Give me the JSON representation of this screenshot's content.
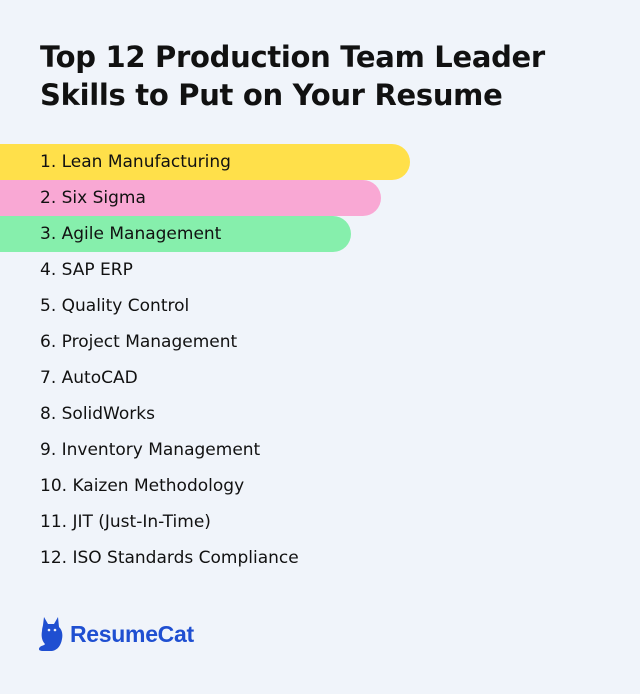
{
  "title_line1": "Top 12 Production Team Leader",
  "title_line2": "Skills to Put on Your Resume",
  "skills": [
    {
      "label": "1. Lean Manufacturing",
      "highlight": "#ffe04a",
      "bar_fraction": 0.64
    },
    {
      "label": "2. Six Sigma",
      "highlight": "#f9a8d4",
      "bar_fraction": 0.595
    },
    {
      "label": "3. Agile Management",
      "highlight": "#86efac",
      "bar_fraction": 0.548
    },
    {
      "label": "4. SAP ERP"
    },
    {
      "label": "5. Quality Control"
    },
    {
      "label": "6. Project Management"
    },
    {
      "label": "7. AutoCAD"
    },
    {
      "label": "8. SolidWorks"
    },
    {
      "label": "9. Inventory Management"
    },
    {
      "label": "10. Kaizen Methodology"
    },
    {
      "label": "11. JIT (Just-In-Time)"
    },
    {
      "label": "12. ISO Standards Compliance"
    }
  ],
  "brand": {
    "name": "ResumeCat",
    "icon": "cat-icon",
    "color": "#1f4fd1"
  }
}
